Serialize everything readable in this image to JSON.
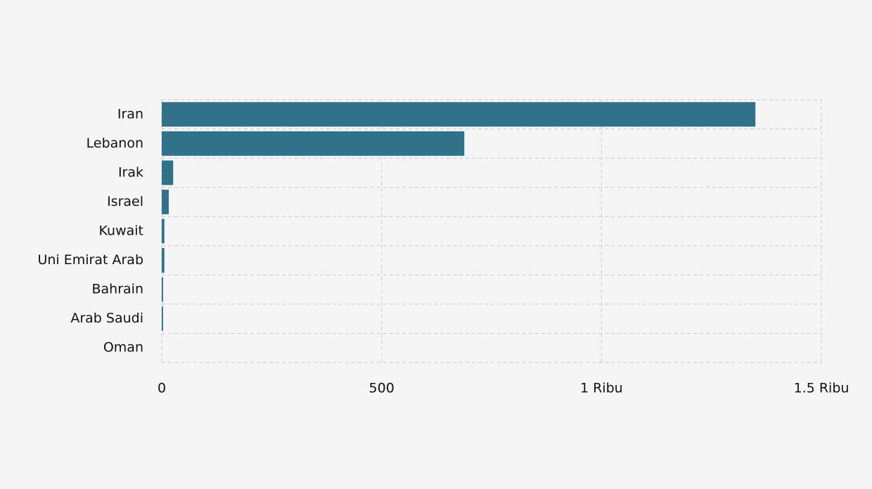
{
  "chart_data": {
    "type": "bar",
    "orientation": "horizontal",
    "categories": [
      "Iran",
      "Lebanon",
      "Irak",
      "Israel",
      "Kuwait",
      "Uni Emirat Arab",
      "Bahrain",
      "Arab Saudi",
      "Oman"
    ],
    "values": [
      1350,
      688,
      26,
      16,
      6,
      6,
      3,
      3,
      0
    ],
    "color": "#31728a",
    "xlim": [
      0,
      1500
    ],
    "xticks": [
      0,
      500,
      {
        "value": 1000,
        "label": "1 Ribu"
      },
      {
        "value": 1500,
        "label": "1.5 Ribu"
      }
    ],
    "grid": true
  }
}
